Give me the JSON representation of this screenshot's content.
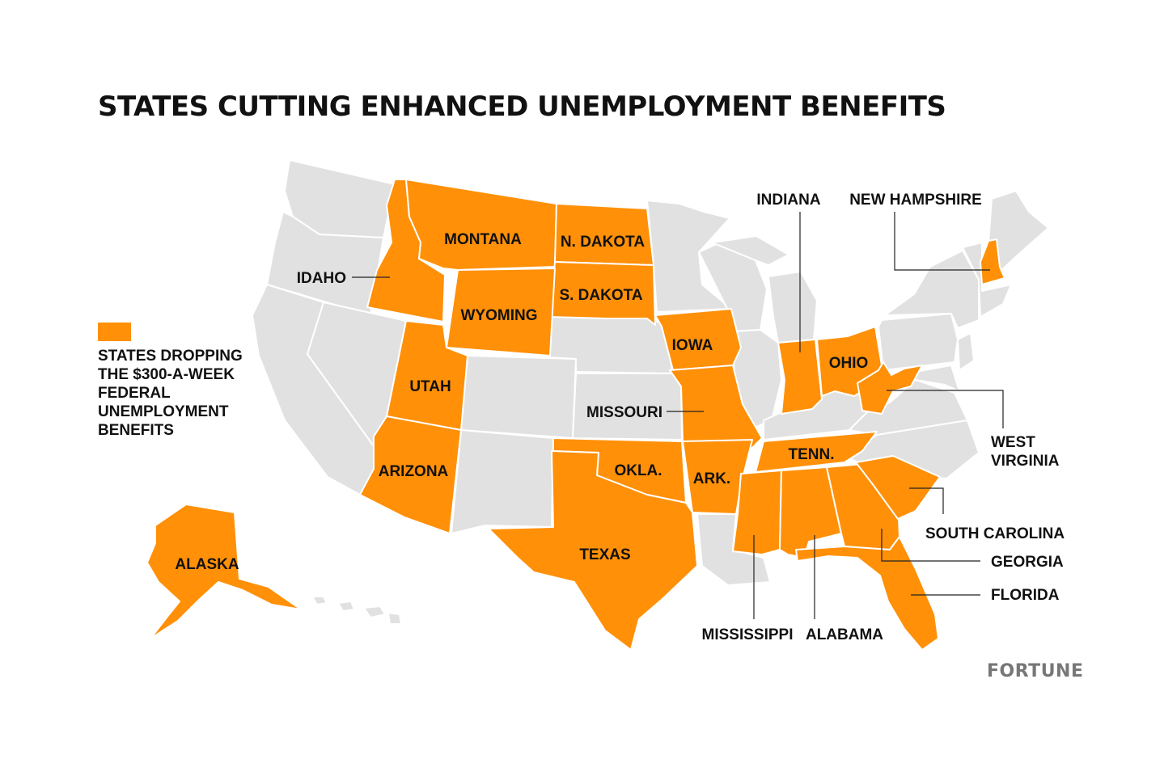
{
  "title": "STATES CUTTING ENHANCED UNEMPLOYMENT BENEFITS",
  "legend": {
    "color": "#ff9008",
    "text": "STATES DROPPING THE $300-A-WEEK FEDERAL UNEMPLOYMENT BENEFITS"
  },
  "colors": {
    "highlight": "#ff9008",
    "other": "#e1e1e1",
    "border": "#ffffff"
  },
  "brand": "FORTUNE",
  "labels": {
    "montana": "MONTANA",
    "north_dakota": "N. DAKOTA",
    "south_dakota": "S. DAKOTA",
    "wyoming": "WYOMING",
    "idaho": "IDAHO",
    "utah": "UTAH",
    "arizona": "ARIZONA",
    "alaska": "ALASKA",
    "texas": "TEXAS",
    "oklahoma": "OKLA.",
    "arkansas": "ARK.",
    "missouri": "MISSOURI",
    "iowa": "IOWA",
    "indiana": "INDIANA",
    "ohio": "OHIO",
    "new_hampshire": "NEW HAMPSHIRE",
    "west_virginia_1": "WEST",
    "west_virginia_2": "VIRGINIA",
    "tennessee": "TENN.",
    "south_carolina": "SOUTH CAROLINA",
    "georgia": "GEORGIA",
    "florida": "FLORIDA",
    "mississippi": "MISSISSIPPI",
    "alabama": "ALABAMA"
  }
}
